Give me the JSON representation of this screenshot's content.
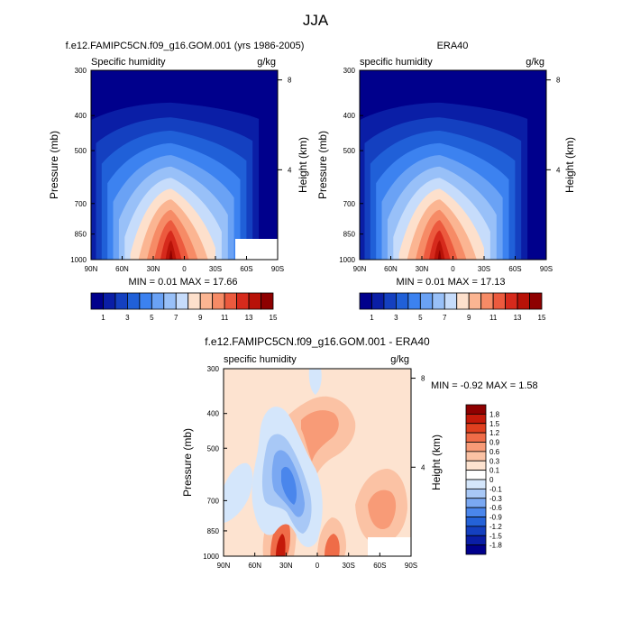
{
  "main_title": "JJA",
  "colors": {
    "top_scale": [
      "#00008c",
      "#0a1ea6",
      "#1440c0",
      "#2060d8",
      "#3c82f0",
      "#6aa2f5",
      "#98c0f8",
      "#c6dcfb",
      "#fde0cc",
      "#fbb592",
      "#f68b66",
      "#ec5a3e",
      "#d62a1c",
      "#b81208",
      "#8e0000"
    ],
    "diff_scale": [
      "#00008c",
      "#0a1ea6",
      "#1440c0",
      "#2462d8",
      "#4a86ec",
      "#7aa8f2",
      "#a8c8f6",
      "#d4e6fb",
      "#ffffff",
      "#fde3d0",
      "#fbc2a4",
      "#f89b77",
      "#ef6c48",
      "#e0401f",
      "#c41a0a",
      "#8e0000"
    ]
  },
  "chart_data": [
    {
      "type": "heatmap",
      "title": "f.e12.FAMIPC5CN.f09_g16.GOM.001 (yrs 1986-2005)",
      "left_label": "Specific humidity",
      "right_label": "g/kg",
      "ylabel": "Pressure (mb)",
      "ylabel_right": "Height (km)",
      "x_ticks": [
        "90N",
        "60N",
        "30N",
        "0",
        "30S",
        "60S",
        "90S"
      ],
      "y_ticks": [
        "300",
        "400",
        "500",
        "700",
        "850",
        "1000"
      ],
      "y_ticks_right": [
        "8",
        "4"
      ],
      "stats": "MIN =  0.01  MAX =  17.66",
      "colorbar_labels": [
        "1",
        "3",
        "5",
        "7",
        "9",
        "11",
        "13",
        "15"
      ],
      "peak_latitude": "15N",
      "peak_value": 17.66
    },
    {
      "type": "heatmap",
      "title": "ERA40",
      "left_label": "specific humidity",
      "right_label": "g/kg",
      "ylabel": "Pressure (mb)",
      "ylabel_right": "Height (km)",
      "x_ticks": [
        "90N",
        "60N",
        "30N",
        "0",
        "30S",
        "60S",
        "90S"
      ],
      "y_ticks": [
        "300",
        "400",
        "500",
        "700",
        "850",
        "1000"
      ],
      "y_ticks_right": [
        "8",
        "4"
      ],
      "stats": "MIN =  0.01  MAX =  17.13",
      "colorbar_labels": [
        "1",
        "3",
        "5",
        "7",
        "9",
        "11",
        "13",
        "15"
      ],
      "peak_latitude": "15N",
      "peak_value": 17.13
    },
    {
      "type": "heatmap",
      "title": "f.e12.FAMIPC5CN.f09_g16.GOM.001 - ERA40",
      "left_label": "specific humidity",
      "right_label": "g/kg",
      "ylabel": "Pressure (mb)",
      "ylabel_right": "Height (km)",
      "x_ticks": [
        "90N",
        "60N",
        "30N",
        "0",
        "30S",
        "60S",
        "90S"
      ],
      "y_ticks": [
        "300",
        "400",
        "500",
        "700",
        "850",
        "1000"
      ],
      "y_ticks_right": [
        "8",
        "4"
      ],
      "stats": "MIN = -0.92  MAX =   1.58",
      "colorbar_labels": [
        "1.8",
        "1.5",
        "1.2",
        "0.9",
        "0.6",
        "0.3",
        "0.1",
        "0",
        "-0.1",
        "-0.3",
        "-0.6",
        "-0.9",
        "-1.2",
        "-1.5",
        "-1.8"
      ]
    }
  ]
}
